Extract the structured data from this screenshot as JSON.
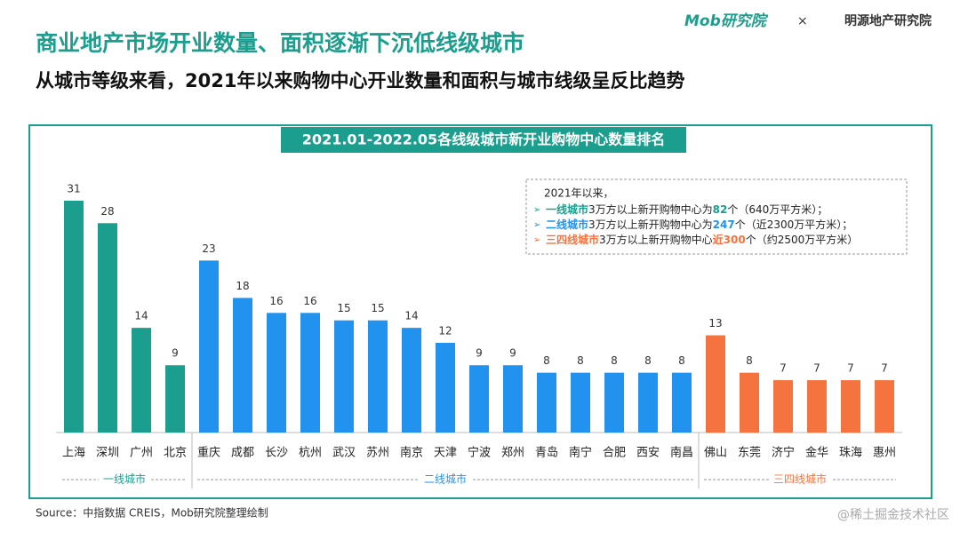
{
  "header": {
    "title": "商业地产市场开业数量、面积逐渐下沉低线级城市",
    "subtitle": "从城市等级来看，2021年以来购物中心开业数量和面积与城市线级呈反比趋势",
    "logos": [
      "Mob研究院",
      "×",
      "明源地产研究院"
    ]
  },
  "chart_data": {
    "type": "bar",
    "title": "2021.01-2022.05各线级城市新开业购物中心数量排名",
    "groups": [
      {
        "name": "一线城市",
        "color": "#1b9e8e",
        "categories": [
          "上海",
          "深圳",
          "广州",
          "北京"
        ],
        "values": [
          31,
          28,
          14,
          9
        ]
      },
      {
        "name": "二线城市",
        "color": "#2192ee",
        "categories": [
          "重庆",
          "成都",
          "长沙",
          "杭州",
          "武汉",
          "苏州",
          "南京",
          "天津",
          "宁波",
          "郑州",
          "青岛",
          "南宁",
          "合肥",
          "西安",
          "南昌"
        ],
        "values": [
          23,
          18,
          16,
          16,
          15,
          15,
          14,
          12,
          9,
          9,
          8,
          8,
          8,
          8,
          8
        ]
      },
      {
        "name": "三四线城市",
        "color": "#f5733f",
        "categories": [
          "佛山",
          "东莞",
          "济宁",
          "金华",
          "珠海",
          "惠州"
        ],
        "values": [
          13,
          8,
          7,
          7,
          7,
          7
        ]
      }
    ],
    "annotation": {
      "intro": "2021年以来，",
      "lines": [
        {
          "color": "#1b9e8e",
          "parts": [
            "一线城市",
            "3万方以上新开购物中心为",
            "82",
            "个（640万平方米）；"
          ]
        },
        {
          "color": "#2192ee",
          "parts": [
            "二线城市",
            "3万方以上新开购物中心为",
            "247",
            "个（近2300万平方米）；"
          ]
        },
        {
          "color": "#f5733f",
          "parts": [
            "三四线城市",
            "3万方以上新开购物中心",
            "近300",
            "个（约2500万平方米）"
          ]
        }
      ]
    }
  },
  "footer": {
    "source": "Source：中指数据 CREIS，Mob研究院整理绘制",
    "watermark": "@稀土掘金技术社区"
  }
}
